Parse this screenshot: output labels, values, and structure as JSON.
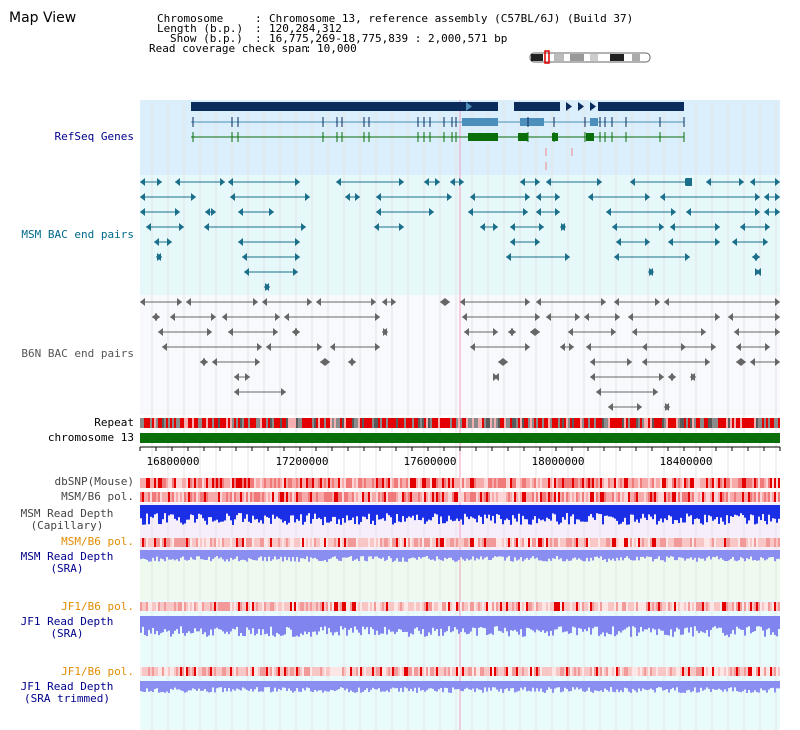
{
  "header": {
    "view_title": "Map View",
    "fields": [
      {
        "label": "Chromosome",
        "value": "Chromosome 13, reference assembly (C57BL/6J) (Build 37)"
      },
      {
        "label": "Length (b.p.)",
        "value": "120,284,312"
      },
      {
        "label": "Show (b.p.)",
        "value": "16,775,269-18,775,839 : 2,000,571 bp"
      },
      {
        "label": "Read coverage check span",
        "value": "10,000"
      }
    ]
  },
  "tracks": {
    "refseq": "RefSeq Genes",
    "msm_bac": "MSM BAC end pairs",
    "b6n_bac": "B6N BAC end pairs",
    "repeat": "Repeat",
    "chromosome": "chromosome 13",
    "dbsnp": "dbSNP(Mouse)",
    "msm_b6_pol_1": "MSM/B6 pol.",
    "msm_depth_cap_1": "MSM Read Depth",
    "msm_depth_cap_2": "(Capillary)",
    "msm_b6_pol_2": "MSM/B6 pol.",
    "msm_depth_sra_1": "MSM Read Depth",
    "msm_depth_sra_2": "(SRA)",
    "jf1_b6_pol_1": "JF1/B6 pol.",
    "jf1_depth_sra_1": "JF1 Read Depth",
    "jf1_depth_sra_2": "(SRA)",
    "jf1_b6_pol_2": "JF1/B6 pol.",
    "jf1_depth_trim_1": "JF1 Read Depth",
    "jf1_depth_trim_2": "(SRA trimmed)"
  },
  "axis": {
    "range": [
      16775269,
      18775839
    ],
    "tick_labels": [
      "16800000",
      "17200000",
      "17600000",
      "18000000",
      "18400000"
    ]
  },
  "colors": {
    "refseq_bg": "#daeffb",
    "msm_bg": "#e6f8f9",
    "navy": "#0b2b5c",
    "steel": "#4b8fba",
    "green": "#0a6e0a",
    "teal": "#1c6f8a",
    "gray": "#666666",
    "label_blue": "#00008b",
    "label_teal": "#006a8a",
    "label_orange": "#e08c00",
    "depth_blue": "#1a2ee6",
    "depth_light": "#8a8ef0"
  }
}
